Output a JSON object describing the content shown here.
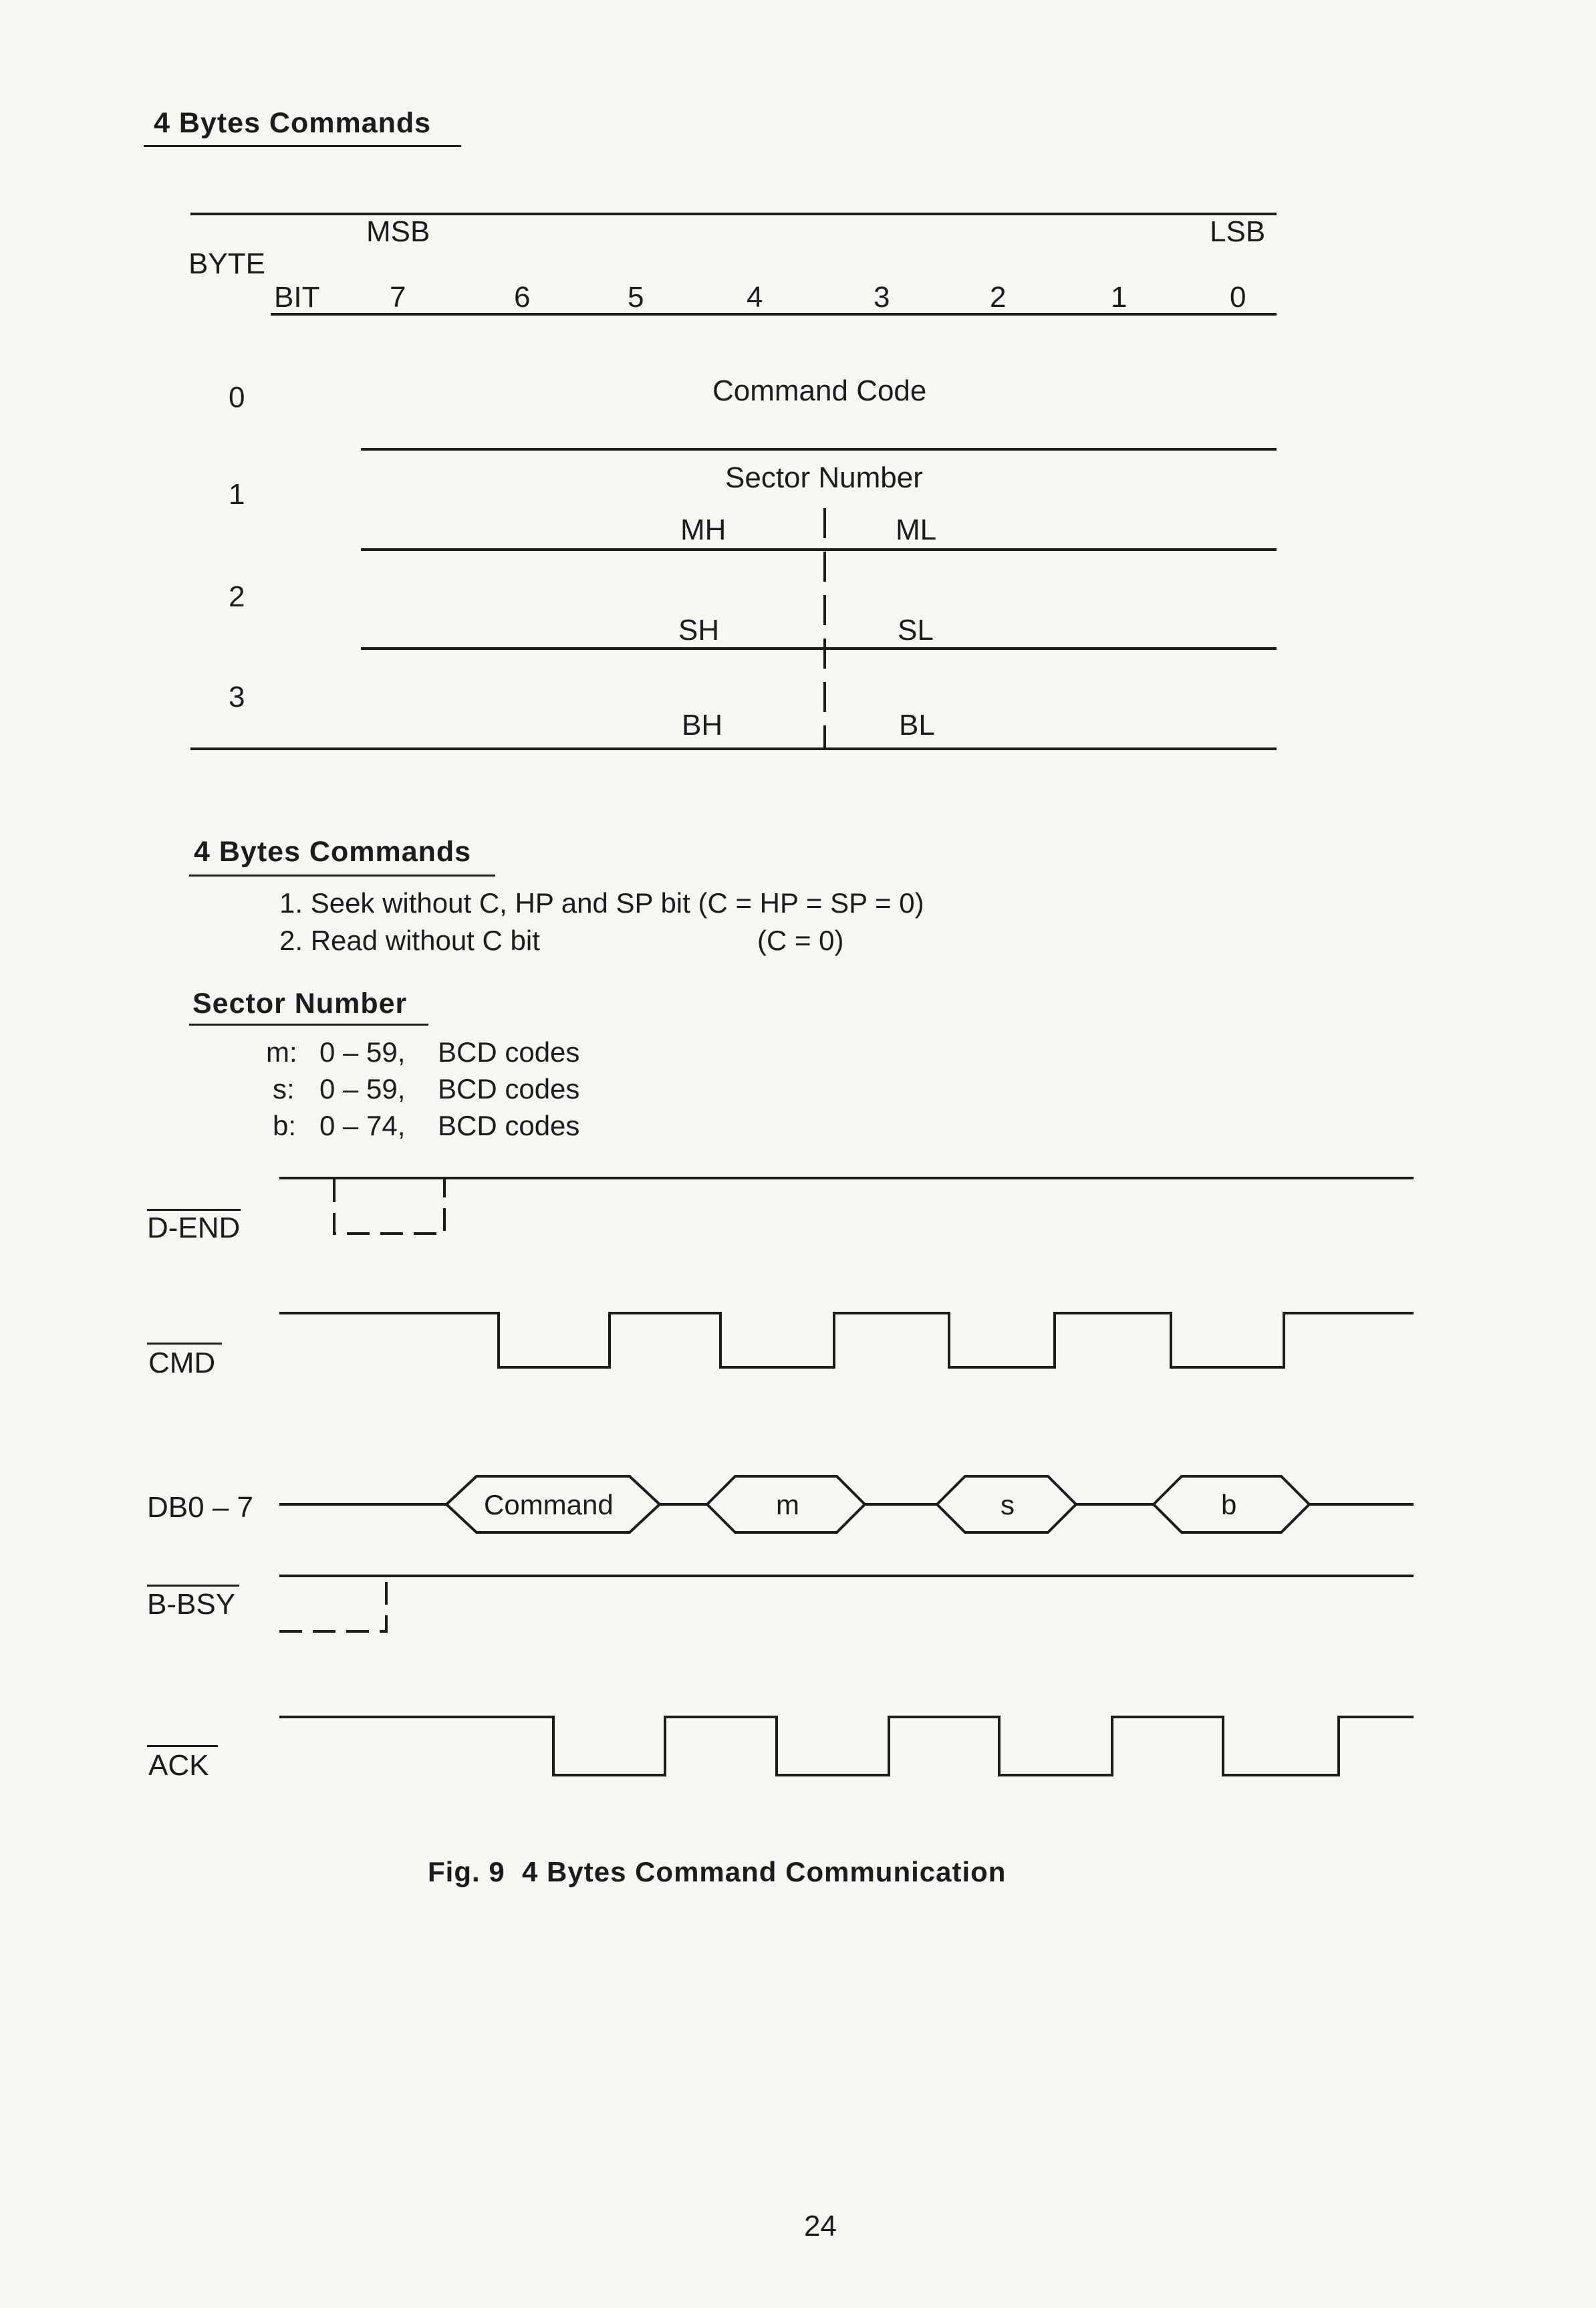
{
  "heading_top": "4 Bytes Commands",
  "table": {
    "msb": "MSB",
    "lsb": "LSB",
    "byte_label": "BYTE",
    "bit_label": "BIT",
    "bits": [
      "7",
      "6",
      "5",
      "4",
      "3",
      "2",
      "1",
      "0"
    ],
    "byte_numbers": [
      "0",
      "1",
      "2",
      "3"
    ],
    "row0": "Command Code",
    "row1_title": "Sector Number",
    "mh": "MH",
    "ml": "ML",
    "sh": "SH",
    "sl": "SL",
    "bh": "BH",
    "bl": "BL"
  },
  "commands": {
    "heading": "4 Bytes Commands",
    "item1": "1. Seek without C, HP and SP bit (C = HP = SP = 0)",
    "item2": "2. Read without C bit",
    "item2_cond": "(C = 0)"
  },
  "sector": {
    "heading": "Sector Number",
    "rows": [
      {
        "var": "m:",
        "range": "0 – 59,",
        "desc": "BCD codes"
      },
      {
        "var": "s:",
        "range": "0 – 59,",
        "desc": "BCD codes"
      },
      {
        "var": "b:",
        "range": "0 – 74,",
        "desc": "BCD codes"
      }
    ]
  },
  "timing": {
    "signals": [
      "D-END",
      "CMD",
      "DB0 – 7",
      "B-BSY",
      "ACK"
    ],
    "data_labels": [
      "Command",
      "m",
      "s",
      "b"
    ]
  },
  "caption": "Fig. 9  4 Bytes Command Communication",
  "page_number": "24"
}
